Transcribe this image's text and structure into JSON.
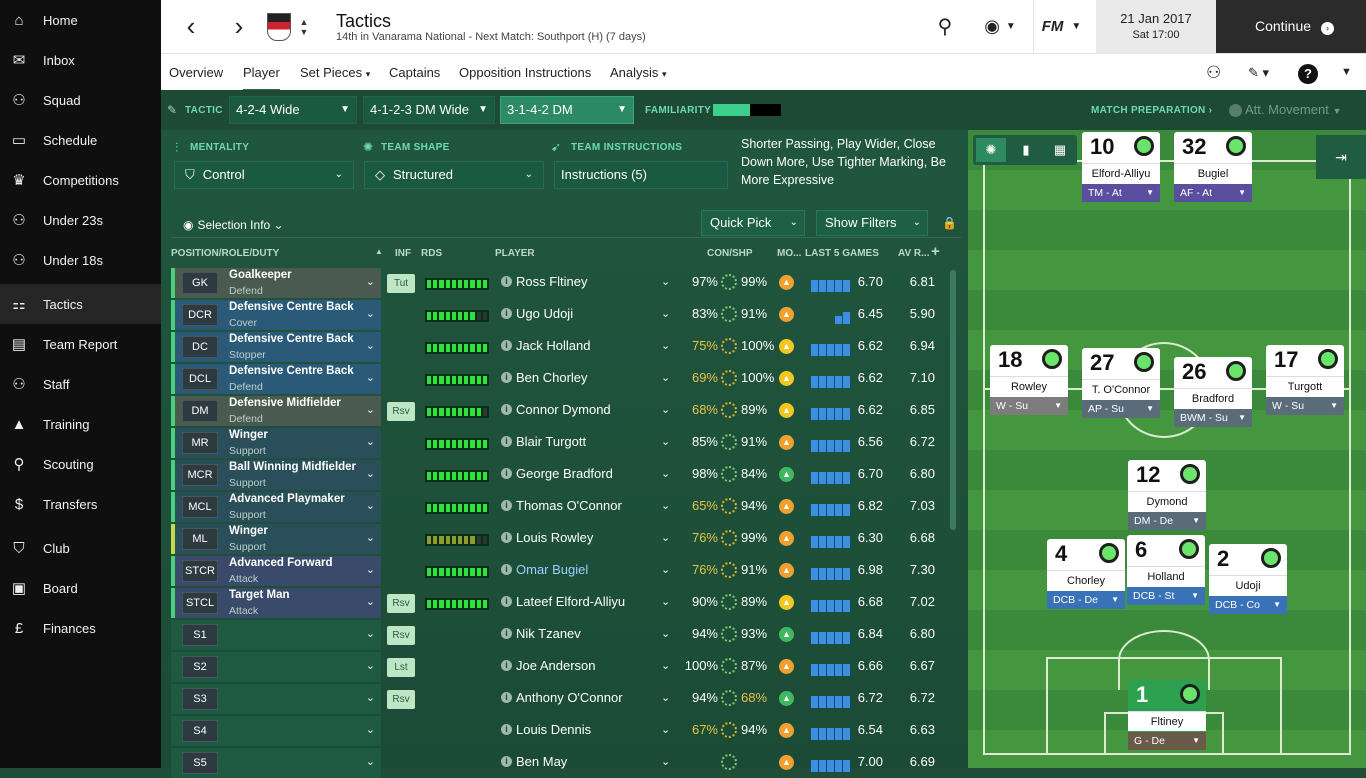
{
  "nav": {
    "items": [
      {
        "label": "Home",
        "icon": "home-icon"
      },
      {
        "label": "Inbox",
        "icon": "inbox-icon"
      },
      {
        "label": "Squad",
        "icon": "squad-icon"
      },
      {
        "label": "Schedule",
        "icon": "calendar-icon"
      },
      {
        "label": "Competitions",
        "icon": "trophy-icon"
      },
      {
        "label": "Under 23s",
        "icon": "under23-icon"
      },
      {
        "label": "Under 18s",
        "icon": "under18-icon"
      },
      {
        "label": "Tactics",
        "icon": "tactics-icon"
      },
      {
        "label": "Team Report",
        "icon": "report-icon"
      },
      {
        "label": "Staff",
        "icon": "staff-icon"
      },
      {
        "label": "Training",
        "icon": "training-icon"
      },
      {
        "label": "Scouting",
        "icon": "scouting-icon"
      },
      {
        "label": "Transfers",
        "icon": "transfers-icon"
      },
      {
        "label": "Club",
        "icon": "club-icon"
      },
      {
        "label": "Board",
        "icon": "board-icon"
      },
      {
        "label": "Finances",
        "icon": "finances-icon"
      }
    ]
  },
  "header": {
    "title": "Tactics",
    "subtitle": "14th in Vanarama National - Next Match: Southport (H) (7 days)",
    "date": "21 Jan 2017",
    "time": "Sat 17:00",
    "continue": "Continue",
    "fm": "FM"
  },
  "submenu": {
    "overview": "Overview",
    "player": "Player",
    "set_pieces": "Set Pieces",
    "captains": "Captains",
    "opposition": "Opposition Instructions",
    "analysis": "Analysis"
  },
  "tactic": {
    "label": "TACTIC",
    "t1": "4-2-4 Wide",
    "t2": "4-1-2-3 DM Wide",
    "t3": "3-1-4-2 DM",
    "familiarity": "FAMILIARITY",
    "match_prep": "MATCH PREPARATION",
    "att_movement": "Att. Movement"
  },
  "settings": {
    "mentality_label": "MENTALITY",
    "mentality": "Control",
    "shape_label": "TEAM SHAPE",
    "shape": "Structured",
    "instr_label": "TEAM INSTRUCTIONS",
    "instructions": "Instructions (5)",
    "instr_text": "Shorter Passing, Play Wider, Close Down More, Use Tighter Marking, Be More Expressive"
  },
  "table": {
    "selection_info": "Selection Info",
    "quick_pick": "Quick Pick",
    "show_filters": "Show Filters",
    "headers": {
      "pos": "POSITION/ROLE/DUTY",
      "inf": "INF",
      "rds": "RDS",
      "player": "PLAYER",
      "conshp": "CON/SHP",
      "mo": "MO...",
      "last5": "LAST 5 GAMES",
      "avr": "AV R..."
    },
    "rows": [
      {
        "pos": "GK",
        "role": "Goalkeeper",
        "duty": "Defend",
        "inf": "Tut",
        "name": "Ross Fltiney",
        "con": "97%",
        "shp": "99%",
        "avg": "6.70",
        "avr": "6.81"
      },
      {
        "pos": "DCR",
        "role": "Defensive Centre Back",
        "duty": "Cover",
        "inf": "",
        "name": "Ugo Udoji",
        "con": "83%",
        "shp": "91%",
        "avg": "6.45",
        "avr": "5.90"
      },
      {
        "pos": "DC",
        "role": "Defensive Centre Back",
        "duty": "Stopper",
        "inf": "",
        "name": "Jack Holland",
        "con": "75%",
        "shp": "100%",
        "avg": "6.62",
        "avr": "6.94"
      },
      {
        "pos": "DCL",
        "role": "Defensive Centre Back",
        "duty": "Defend",
        "inf": "",
        "name": "Ben Chorley",
        "con": "69%",
        "shp": "100%",
        "avg": "6.62",
        "avr": "7.10"
      },
      {
        "pos": "DM",
        "role": "Defensive Midfielder",
        "duty": "Defend",
        "inf": "Rsv",
        "name": "Connor Dymond",
        "con": "68%",
        "shp": "89%",
        "avg": "6.62",
        "avr": "6.85"
      },
      {
        "pos": "MR",
        "role": "Winger",
        "duty": "Support",
        "inf": "",
        "name": "Blair Turgott",
        "con": "85%",
        "shp": "91%",
        "avg": "6.56",
        "avr": "6.72"
      },
      {
        "pos": "MCR",
        "role": "Ball Winning Midfielder",
        "duty": "Support",
        "inf": "",
        "name": "George Bradford",
        "con": "98%",
        "shp": "84%",
        "avg": "6.70",
        "avr": "6.80"
      },
      {
        "pos": "MCL",
        "role": "Advanced Playmaker",
        "duty": "Support",
        "inf": "",
        "name": "Thomas O'Connor",
        "con": "65%",
        "shp": "94%",
        "avg": "6.82",
        "avr": "7.03"
      },
      {
        "pos": "ML",
        "role": "Winger",
        "duty": "Support",
        "inf": "",
        "name": "Louis Rowley",
        "con": "76%",
        "shp": "99%",
        "avg": "6.30",
        "avr": "6.68"
      },
      {
        "pos": "STCR",
        "role": "Advanced Forward",
        "duty": "Attack",
        "inf": "",
        "name": "Omar Bugiel",
        "con": "76%",
        "shp": "91%",
        "avg": "6.98",
        "avr": "7.30"
      },
      {
        "pos": "STCL",
        "role": "Target Man",
        "duty": "Attack",
        "inf": "Rsv",
        "name": "Lateef Elford-Alliyu",
        "con": "90%",
        "shp": "89%",
        "avg": "6.68",
        "avr": "7.02"
      },
      {
        "pos": "S1",
        "role": "",
        "duty": "",
        "inf": "Rsv",
        "name": "Nik Tzanev",
        "con": "94%",
        "shp": "93%",
        "avg": "6.84",
        "avr": "6.80"
      },
      {
        "pos": "S2",
        "role": "",
        "duty": "",
        "inf": "Lst",
        "name": "Joe Anderson",
        "con": "100%",
        "shp": "87%",
        "avg": "6.66",
        "avr": "6.67"
      },
      {
        "pos": "S3",
        "role": "",
        "duty": "",
        "inf": "Rsv",
        "name": "Anthony O'Connor",
        "con": "94%",
        "shp": "68%",
        "avg": "6.72",
        "avr": "6.72"
      },
      {
        "pos": "S4",
        "role": "",
        "duty": "",
        "inf": "",
        "name": "Louis Dennis",
        "con": "67%",
        "shp": "94%",
        "avg": "6.54",
        "avr": "6.63"
      },
      {
        "pos": "S5",
        "role": "",
        "duty": "",
        "inf": "",
        "name": "Ben May",
        "con": "",
        "shp": "",
        "avg": "7.00",
        "avr": "6.69"
      }
    ]
  },
  "pitch": {
    "players": [
      {
        "num": "10",
        "name": "Elford-Alliyu",
        "role": "TM - At"
      },
      {
        "num": "32",
        "name": "Bugiel",
        "role": "AF - At"
      },
      {
        "num": "18",
        "name": "Rowley",
        "role": "W - Su"
      },
      {
        "num": "27",
        "name": "T. O'Connor",
        "role": "AP - Su"
      },
      {
        "num": "26",
        "name": "Bradford",
        "role": "BWM - Su"
      },
      {
        "num": "17",
        "name": "Turgott",
        "role": "W - Su"
      },
      {
        "num": "12",
        "name": "Dymond",
        "role": "DM - De"
      },
      {
        "num": "4",
        "name": "Chorley",
        "role": "DCB - De"
      },
      {
        "num": "6",
        "name": "Holland",
        "role": "DCB - St"
      },
      {
        "num": "2",
        "name": "Udoji",
        "role": "DCB - Co"
      },
      {
        "num": "1",
        "name": "Fltiney",
        "role": "G - De"
      }
    ]
  }
}
